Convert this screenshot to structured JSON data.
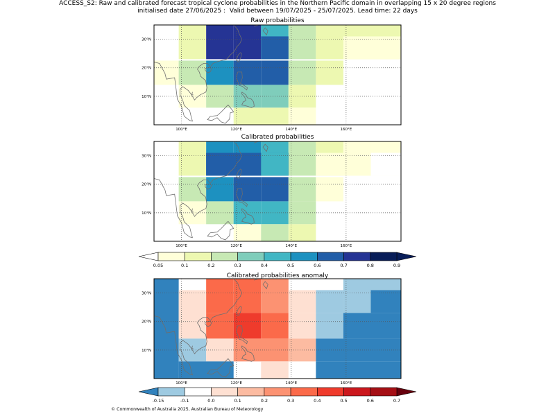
{
  "title": {
    "line1": "ACCESS_S2: Raw and calibrated forecast tropical cyclone probabilities in the Northern Pacific domain in overlapping 15 x 20 degree regions",
    "line2": "initialised date 27/06/2025 :  Valid between 19/07/2025 - 25/07/2025. Lead time: 22 days"
  },
  "copyright": "© Commonwealth of Australia 2025, Australian Bureau of Meteorology",
  "chart_data": [
    {
      "type": "heatmap",
      "title": "Raw probabilities",
      "x_ticks": [
        "100°E",
        "120°E",
        "140°E",
        "160°E"
      ],
      "y_ticks": [
        "10°N",
        "20°N",
        "30°N"
      ],
      "xlim": [
        90,
        180
      ],
      "ylim": [
        0,
        35
      ],
      "grid": true,
      "cells": [
        {
          "lon": [
            99,
            109
          ],
          "lat": [
            23,
            36
          ],
          "value": 0.15
        },
        {
          "lon": [
            109,
            119
          ],
          "lat": [
            23,
            36
          ],
          "value": 0.7
        },
        {
          "lon": [
            119,
            129
          ],
          "lat": [
            23,
            36
          ],
          "value": 0.7
        },
        {
          "lon": [
            129,
            139
          ],
          "lat": [
            23,
            36
          ],
          "value": 0.45
        },
        {
          "lon": [
            139,
            149
          ],
          "lat": [
            23,
            36
          ],
          "value": 0.25
        },
        {
          "lon": [
            149,
            159
          ],
          "lat": [
            23,
            36
          ],
          "value": 0.15
        },
        {
          "lon": [
            159,
            169
          ],
          "lat": [
            23,
            36
          ],
          "value": 0.15
        },
        {
          "lon": [
            169,
            180
          ],
          "lat": [
            23,
            36
          ],
          "value": 0.15
        },
        {
          "lon": [
            129,
            139
          ],
          "lat": [
            23,
            31
          ],
          "value": 0.65
        },
        {
          "lon": [
            149,
            159
          ],
          "lat": [
            23,
            31
          ],
          "value": 0.12
        },
        {
          "lon": [
            159,
            180
          ],
          "lat": [
            23,
            31
          ],
          "value": 0.08
        },
        {
          "lon": [
            90,
            99
          ],
          "lat": [
            14,
            22.5
          ],
          "value": 0.08
        },
        {
          "lon": [
            99,
            109
          ],
          "lat": [
            14,
            22.5
          ],
          "value": 0.25
        },
        {
          "lon": [
            109,
            119
          ],
          "lat": [
            14,
            22.5
          ],
          "value": 0.55
        },
        {
          "lon": [
            119,
            129
          ],
          "lat": [
            14,
            22.5
          ],
          "value": 0.65
        },
        {
          "lon": [
            129,
            139
          ],
          "lat": [
            14,
            22.5
          ],
          "value": 0.65
        },
        {
          "lon": [
            139,
            149
          ],
          "lat": [
            14,
            22.5
          ],
          "value": 0.25
        },
        {
          "lon": [
            149,
            159
          ],
          "lat": [
            14,
            22.5
          ],
          "value": 0.12
        },
        {
          "lon": [
            99,
            109
          ],
          "lat": [
            6,
            14
          ],
          "value": 0.08
        },
        {
          "lon": [
            109,
            119
          ],
          "lat": [
            6,
            14
          ],
          "value": 0.2
        },
        {
          "lon": [
            119,
            129
          ],
          "lat": [
            6,
            14
          ],
          "value": 0.35
        },
        {
          "lon": [
            129,
            139
          ],
          "lat": [
            6,
            14
          ],
          "value": 0.35
        },
        {
          "lon": [
            139,
            149
          ],
          "lat": [
            6,
            14
          ],
          "value": 0.15
        },
        {
          "lon": [
            119,
            139
          ],
          "lat": [
            0,
            6
          ],
          "value": 0.1
        },
        {
          "lon": [
            139,
            149
          ],
          "lat": [
            0,
            6
          ],
          "value": 0.07
        }
      ]
    },
    {
      "type": "heatmap",
      "title": "Calibrated probabilities",
      "x_ticks": [
        "100°E",
        "120°E",
        "140°E",
        "160°E"
      ],
      "y_ticks": [
        "10°N",
        "20°N",
        "30°N"
      ],
      "xlim": [
        90,
        180
      ],
      "ylim": [
        0,
        35
      ],
      "grid": true,
      "cells": [
        {
          "lon": [
            99,
            109
          ],
          "lat": [
            23,
            36
          ],
          "value": 0.15
        },
        {
          "lon": [
            109,
            119
          ],
          "lat": [
            23,
            36
          ],
          "value": 0.55
        },
        {
          "lon": [
            119,
            129
          ],
          "lat": [
            23,
            36
          ],
          "value": 0.55
        },
        {
          "lon": [
            129,
            139
          ],
          "lat": [
            23,
            36
          ],
          "value": 0.45
        },
        {
          "lon": [
            139,
            149
          ],
          "lat": [
            23,
            36
          ],
          "value": 0.25
        },
        {
          "lon": [
            149,
            159
          ],
          "lat": [
            23,
            36
          ],
          "value": 0.12
        },
        {
          "lon": [
            159,
            169
          ],
          "lat": [
            23,
            36
          ],
          "value": 0.08
        },
        {
          "lon": [
            169,
            180
          ],
          "lat": [
            23,
            36
          ],
          "value": 0.08
        },
        {
          "lon": [
            109,
            139
          ],
          "lat": [
            23,
            31
          ],
          "value": 0.65
        },
        {
          "lon": [
            129,
            139
          ],
          "lat": [
            23,
            31
          ],
          "value": 0.45
        },
        {
          "lon": [
            149,
            159
          ],
          "lat": [
            23,
            31
          ],
          "value": 0.08
        },
        {
          "lon": [
            159,
            169
          ],
          "lat": [
            23,
            31
          ],
          "value": 0.08
        },
        {
          "lon": [
            169,
            180
          ],
          "lat": [
            23,
            31
          ],
          "value": 0.0
        },
        {
          "lon": [
            99,
            109
          ],
          "lat": [
            14,
            22.5
          ],
          "value": 0.25
        },
        {
          "lon": [
            109,
            119
          ],
          "lat": [
            14,
            22.5
          ],
          "value": 0.55
        },
        {
          "lon": [
            119,
            129
          ],
          "lat": [
            14,
            22.5
          ],
          "value": 0.65
        },
        {
          "lon": [
            129,
            139
          ],
          "lat": [
            14,
            22.5
          ],
          "value": 0.65
        },
        {
          "lon": [
            139,
            149
          ],
          "lat": [
            14,
            22.5
          ],
          "value": 0.25
        },
        {
          "lon": [
            149,
            159
          ],
          "lat": [
            14,
            22.5
          ],
          "value": 0.08
        },
        {
          "lon": [
            99,
            109
          ],
          "lat": [
            6,
            14
          ],
          "value": 0.08
        },
        {
          "lon": [
            109,
            119
          ],
          "lat": [
            6,
            14
          ],
          "value": 0.2
        },
        {
          "lon": [
            119,
            129
          ],
          "lat": [
            6,
            14
          ],
          "value": 0.45
        },
        {
          "lon": [
            129,
            139
          ],
          "lat": [
            6,
            14
          ],
          "value": 0.45
        },
        {
          "lon": [
            139,
            149
          ],
          "lat": [
            6,
            14
          ],
          "value": 0.25
        },
        {
          "lon": [
            119,
            129
          ],
          "lat": [
            0,
            6
          ],
          "value": 0.07
        },
        {
          "lon": [
            129,
            139
          ],
          "lat": [
            0,
            6
          ],
          "value": 0.25
        },
        {
          "lon": [
            139,
            149
          ],
          "lat": [
            0,
            6
          ],
          "value": 0.15
        }
      ]
    },
    {
      "type": "heatmap",
      "title": "Calibrated probabilities anomaly",
      "x_ticks": [
        "100°E",
        "120°E",
        "140°E",
        "160°E"
      ],
      "y_ticks": [
        "10°N",
        "20°N",
        "30°N"
      ],
      "xlim": [
        90,
        180
      ],
      "ylim": [
        0,
        35
      ],
      "grid": true,
      "cells": [
        {
          "lon": [
            90,
            99
          ],
          "lat": [
            0,
            36
          ],
          "value": -0.2
        },
        {
          "lon": [
            99,
            109
          ],
          "lat": [
            14,
            31
          ],
          "value": 0.05
        },
        {
          "lon": [
            109,
            119
          ],
          "lat": [
            23,
            36
          ],
          "value": 0.35
        },
        {
          "lon": [
            119,
            129
          ],
          "lat": [
            23,
            36
          ],
          "value": 0.35
        },
        {
          "lon": [
            129,
            139
          ],
          "lat": [
            23,
            36
          ],
          "value": 0.25
        },
        {
          "lon": [
            139,
            149
          ],
          "lat": [
            23,
            31
          ],
          "value": 0.05
        },
        {
          "lon": [
            149,
            159
          ],
          "lat": [
            23,
            31
          ],
          "value": -0.12
        },
        {
          "lon": [
            159,
            169
          ],
          "lat": [
            23,
            36
          ],
          "value": -0.12
        },
        {
          "lon": [
            169,
            180
          ],
          "lat": [
            31,
            36
          ],
          "value": -0.12
        },
        {
          "lon": [
            169,
            180
          ],
          "lat": [
            23,
            31
          ],
          "value": -0.2
        },
        {
          "lon": [
            109,
            119
          ],
          "lat": [
            14,
            23
          ],
          "value": 0.35
        },
        {
          "lon": [
            119,
            129
          ],
          "lat": [
            14,
            23
          ],
          "value": 0.45
        },
        {
          "lon": [
            129,
            139
          ],
          "lat": [
            14,
            23
          ],
          "value": 0.35
        },
        {
          "lon": [
            139,
            149
          ],
          "lat": [
            14,
            23
          ],
          "value": 0.05
        },
        {
          "lon": [
            149,
            159
          ],
          "lat": [
            14,
            23
          ],
          "value": -0.12
        },
        {
          "lon": [
            159,
            180
          ],
          "lat": [
            14,
            23
          ],
          "value": -0.2
        },
        {
          "lon": [
            99,
            109
          ],
          "lat": [
            6,
            14
          ],
          "value": -0.12
        },
        {
          "lon": [
            109,
            119
          ],
          "lat": [
            6,
            14
          ],
          "value": 0.05
        },
        {
          "lon": [
            119,
            139
          ],
          "lat": [
            6,
            14
          ],
          "value": 0.25
        },
        {
          "lon": [
            139,
            149
          ],
          "lat": [
            6,
            14
          ],
          "value": 0.15
        },
        {
          "lon": [
            149,
            180
          ],
          "lat": [
            6,
            14
          ],
          "value": -0.2
        },
        {
          "lon": [
            99,
            119
          ],
          "lat": [
            0,
            6
          ],
          "value": -0.2
        },
        {
          "lon": [
            129,
            139
          ],
          "lat": [
            0,
            6
          ],
          "value": 0.05
        },
        {
          "lon": [
            149,
            180
          ],
          "lat": [
            0,
            6
          ],
          "value": -0.2
        }
      ]
    }
  ],
  "colorbar_prob": {
    "ticks": [
      "0.05",
      "0.1",
      "0.2",
      "0.3",
      "0.4",
      "0.5",
      "0.6",
      "0.7",
      "0.8",
      "0.9"
    ],
    "colors": [
      "#ffffd9",
      "#edf8b1",
      "#c7e9b4",
      "#7fcdbb",
      "#41b6c4",
      "#1d91c0",
      "#225ea8",
      "#253494",
      "#081d58"
    ],
    "under": "#ffffff",
    "over": "#081d58"
  },
  "colorbar_anom": {
    "ticks": [
      "-0.15",
      "-0.1",
      "0.0",
      "0.1",
      "0.2",
      "0.3",
      "0.4",
      "0.5",
      "0.6",
      "0.7"
    ],
    "colors": [
      "#9ecae1",
      "#ffffff",
      "#fee0d2",
      "#fcbba1",
      "#fc9272",
      "#fb6a4a",
      "#ef3b2c",
      "#cb181d",
      "#a50f15"
    ],
    "under": "#3182bd",
    "over": "#67000d"
  }
}
